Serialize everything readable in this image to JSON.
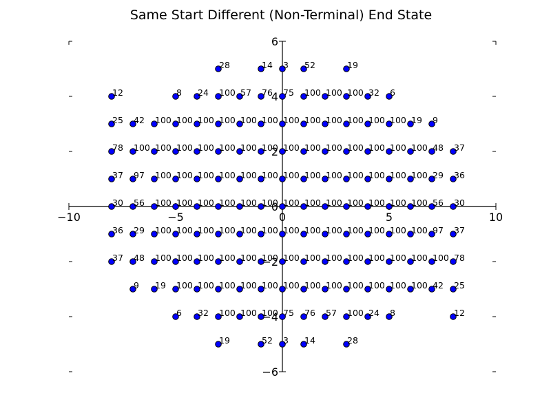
{
  "chart_data": {
    "type": "scatter",
    "title": "Same Start Different (Non-Terminal) End State",
    "xlabel": "",
    "ylabel": "",
    "xlim": [
      -10,
      10
    ],
    "ylim": [
      -6,
      6
    ],
    "xticks": [
      -10,
      -5,
      0,
      5,
      10
    ],
    "yticks": [
      -6,
      -4,
      -2,
      0,
      2,
      4,
      6
    ],
    "xtick_labels": [
      "−10",
      "−5",
      "0",
      "5",
      "10"
    ],
    "ytick_labels": [
      "−6",
      "−4",
      "−2",
      "0",
      "2",
      "4",
      "6"
    ],
    "grid": false,
    "marker_color": "#0000ff",
    "points": [
      {
        "x": -3,
        "y": 5,
        "label": "28"
      },
      {
        "x": -1,
        "y": 5,
        "label": "14"
      },
      {
        "x": 0,
        "y": 5,
        "label": "3"
      },
      {
        "x": 1,
        "y": 5,
        "label": "52"
      },
      {
        "x": 3,
        "y": 5,
        "label": "19"
      },
      {
        "x": -8,
        "y": 4,
        "label": "12"
      },
      {
        "x": -5,
        "y": 4,
        "label": "8"
      },
      {
        "x": -4,
        "y": 4,
        "label": "24"
      },
      {
        "x": -3,
        "y": 4,
        "label": "100"
      },
      {
        "x": -2,
        "y": 4,
        "label": "57"
      },
      {
        "x": -1,
        "y": 4,
        "label": "76"
      },
      {
        "x": 0,
        "y": 4,
        "label": "75"
      },
      {
        "x": 1,
        "y": 4,
        "label": "100"
      },
      {
        "x": 2,
        "y": 4,
        "label": "100"
      },
      {
        "x": 3,
        "y": 4,
        "label": "100"
      },
      {
        "x": 4,
        "y": 4,
        "label": "32"
      },
      {
        "x": 5,
        "y": 4,
        "label": "6"
      },
      {
        "x": -8,
        "y": 3,
        "label": "25"
      },
      {
        "x": -7,
        "y": 3,
        "label": "42"
      },
      {
        "x": -6,
        "y": 3,
        "label": "100"
      },
      {
        "x": -5,
        "y": 3,
        "label": "100"
      },
      {
        "x": -4,
        "y": 3,
        "label": "100"
      },
      {
        "x": -3,
        "y": 3,
        "label": "100"
      },
      {
        "x": -2,
        "y": 3,
        "label": "100"
      },
      {
        "x": -1,
        "y": 3,
        "label": "100"
      },
      {
        "x": 0,
        "y": 3,
        "label": "100"
      },
      {
        "x": 1,
        "y": 3,
        "label": "100"
      },
      {
        "x": 2,
        "y": 3,
        "label": "100"
      },
      {
        "x": 3,
        "y": 3,
        "label": "100"
      },
      {
        "x": 4,
        "y": 3,
        "label": "100"
      },
      {
        "x": 5,
        "y": 3,
        "label": "100"
      },
      {
        "x": 6,
        "y": 3,
        "label": "19"
      },
      {
        "x": 7,
        "y": 3,
        "label": "9"
      },
      {
        "x": -8,
        "y": 2,
        "label": "78"
      },
      {
        "x": -7,
        "y": 2,
        "label": "100"
      },
      {
        "x": -6,
        "y": 2,
        "label": "100"
      },
      {
        "x": -5,
        "y": 2,
        "label": "100"
      },
      {
        "x": -4,
        "y": 2,
        "label": "100"
      },
      {
        "x": -3,
        "y": 2,
        "label": "100"
      },
      {
        "x": -2,
        "y": 2,
        "label": "100"
      },
      {
        "x": -1,
        "y": 2,
        "label": "100"
      },
      {
        "x": 0,
        "y": 2,
        "label": "100"
      },
      {
        "x": 1,
        "y": 2,
        "label": "100"
      },
      {
        "x": 2,
        "y": 2,
        "label": "100"
      },
      {
        "x": 3,
        "y": 2,
        "label": "100"
      },
      {
        "x": 4,
        "y": 2,
        "label": "100"
      },
      {
        "x": 5,
        "y": 2,
        "label": "100"
      },
      {
        "x": 6,
        "y": 2,
        "label": "100"
      },
      {
        "x": 7,
        "y": 2,
        "label": "48"
      },
      {
        "x": 8,
        "y": 2,
        "label": "37"
      },
      {
        "x": -8,
        "y": 1,
        "label": "37"
      },
      {
        "x": -7,
        "y": 1,
        "label": "97"
      },
      {
        "x": -6,
        "y": 1,
        "label": "100"
      },
      {
        "x": -5,
        "y": 1,
        "label": "100"
      },
      {
        "x": -4,
        "y": 1,
        "label": "100"
      },
      {
        "x": -3,
        "y": 1,
        "label": "100"
      },
      {
        "x": -2,
        "y": 1,
        "label": "100"
      },
      {
        "x": -1,
        "y": 1,
        "label": "100"
      },
      {
        "x": 0,
        "y": 1,
        "label": "100"
      },
      {
        "x": 1,
        "y": 1,
        "label": "100"
      },
      {
        "x": 2,
        "y": 1,
        "label": "100"
      },
      {
        "x": 3,
        "y": 1,
        "label": "100"
      },
      {
        "x": 4,
        "y": 1,
        "label": "100"
      },
      {
        "x": 5,
        "y": 1,
        "label": "100"
      },
      {
        "x": 6,
        "y": 1,
        "label": "100"
      },
      {
        "x": 7,
        "y": 1,
        "label": "29"
      },
      {
        "x": 8,
        "y": 1,
        "label": "36"
      },
      {
        "x": -8,
        "y": 0,
        "label": "30"
      },
      {
        "x": -7,
        "y": 0,
        "label": "56"
      },
      {
        "x": -6,
        "y": 0,
        "label": "100"
      },
      {
        "x": -5,
        "y": 0,
        "label": "100"
      },
      {
        "x": -4,
        "y": 0,
        "label": "100"
      },
      {
        "x": -3,
        "y": 0,
        "label": "100"
      },
      {
        "x": -2,
        "y": 0,
        "label": "100"
      },
      {
        "x": -1,
        "y": 0,
        "label": "100"
      },
      {
        "x": 0,
        "y": 0,
        "label": "100"
      },
      {
        "x": 1,
        "y": 0,
        "label": "100"
      },
      {
        "x": 2,
        "y": 0,
        "label": "100"
      },
      {
        "x": 3,
        "y": 0,
        "label": "100"
      },
      {
        "x": 4,
        "y": 0,
        "label": "100"
      },
      {
        "x": 5,
        "y": 0,
        "label": "100"
      },
      {
        "x": 6,
        "y": 0,
        "label": "100"
      },
      {
        "x": 7,
        "y": 0,
        "label": "56"
      },
      {
        "x": 8,
        "y": 0,
        "label": "30"
      },
      {
        "x": -8,
        "y": -1,
        "label": "36"
      },
      {
        "x": -7,
        "y": -1,
        "label": "29"
      },
      {
        "x": -6,
        "y": -1,
        "label": "100"
      },
      {
        "x": -5,
        "y": -1,
        "label": "100"
      },
      {
        "x": -4,
        "y": -1,
        "label": "100"
      },
      {
        "x": -3,
        "y": -1,
        "label": "100"
      },
      {
        "x": -2,
        "y": -1,
        "label": "100"
      },
      {
        "x": -1,
        "y": -1,
        "label": "100"
      },
      {
        "x": 0,
        "y": -1,
        "label": "100"
      },
      {
        "x": 1,
        "y": -1,
        "label": "100"
      },
      {
        "x": 2,
        "y": -1,
        "label": "100"
      },
      {
        "x": 3,
        "y": -1,
        "label": "100"
      },
      {
        "x": 4,
        "y": -1,
        "label": "100"
      },
      {
        "x": 5,
        "y": -1,
        "label": "100"
      },
      {
        "x": 6,
        "y": -1,
        "label": "100"
      },
      {
        "x": 7,
        "y": -1,
        "label": "97"
      },
      {
        "x": 8,
        "y": -1,
        "label": "37"
      },
      {
        "x": -8,
        "y": -2,
        "label": "37"
      },
      {
        "x": -7,
        "y": -2,
        "label": "48"
      },
      {
        "x": -6,
        "y": -2,
        "label": "100"
      },
      {
        "x": -5,
        "y": -2,
        "label": "100"
      },
      {
        "x": -4,
        "y": -2,
        "label": "100"
      },
      {
        "x": -3,
        "y": -2,
        "label": "100"
      },
      {
        "x": -2,
        "y": -2,
        "label": "100"
      },
      {
        "x": -1,
        "y": -2,
        "label": "100"
      },
      {
        "x": 0,
        "y": -2,
        "label": "100"
      },
      {
        "x": 1,
        "y": -2,
        "label": "100"
      },
      {
        "x": 2,
        "y": -2,
        "label": "100"
      },
      {
        "x": 3,
        "y": -2,
        "label": "100"
      },
      {
        "x": 4,
        "y": -2,
        "label": "100"
      },
      {
        "x": 5,
        "y": -2,
        "label": "100"
      },
      {
        "x": 6,
        "y": -2,
        "label": "100"
      },
      {
        "x": 7,
        "y": -2,
        "label": "100"
      },
      {
        "x": 8,
        "y": -2,
        "label": "78"
      },
      {
        "x": -7,
        "y": -3,
        "label": "9"
      },
      {
        "x": -6,
        "y": -3,
        "label": "19"
      },
      {
        "x": -5,
        "y": -3,
        "label": "100"
      },
      {
        "x": -4,
        "y": -3,
        "label": "100"
      },
      {
        "x": -3,
        "y": -3,
        "label": "100"
      },
      {
        "x": -2,
        "y": -3,
        "label": "100"
      },
      {
        "x": -1,
        "y": -3,
        "label": "100"
      },
      {
        "x": 0,
        "y": -3,
        "label": "100"
      },
      {
        "x": 1,
        "y": -3,
        "label": "100"
      },
      {
        "x": 2,
        "y": -3,
        "label": "100"
      },
      {
        "x": 3,
        "y": -3,
        "label": "100"
      },
      {
        "x": 4,
        "y": -3,
        "label": "100"
      },
      {
        "x": 5,
        "y": -3,
        "label": "100"
      },
      {
        "x": 6,
        "y": -3,
        "label": "100"
      },
      {
        "x": 7,
        "y": -3,
        "label": "42"
      },
      {
        "x": 8,
        "y": -3,
        "label": "25"
      },
      {
        "x": -5,
        "y": -4,
        "label": "6"
      },
      {
        "x": -4,
        "y": -4,
        "label": "32"
      },
      {
        "x": -3,
        "y": -4,
        "label": "100"
      },
      {
        "x": -2,
        "y": -4,
        "label": "100"
      },
      {
        "x": -1,
        "y": -4,
        "label": "100"
      },
      {
        "x": 0,
        "y": -4,
        "label": "75"
      },
      {
        "x": 1,
        "y": -4,
        "label": "76"
      },
      {
        "x": 2,
        "y": -4,
        "label": "57"
      },
      {
        "x": 3,
        "y": -4,
        "label": "100"
      },
      {
        "x": 4,
        "y": -4,
        "label": "24"
      },
      {
        "x": 5,
        "y": -4,
        "label": "8"
      },
      {
        "x": 8,
        "y": -4,
        "label": "12"
      },
      {
        "x": -3,
        "y": -5,
        "label": "19"
      },
      {
        "x": -1,
        "y": -5,
        "label": "52"
      },
      {
        "x": 0,
        "y": -5,
        "label": "3"
      },
      {
        "x": 1,
        "y": -5,
        "label": "14"
      },
      {
        "x": 3,
        "y": -5,
        "label": "28"
      }
    ]
  }
}
